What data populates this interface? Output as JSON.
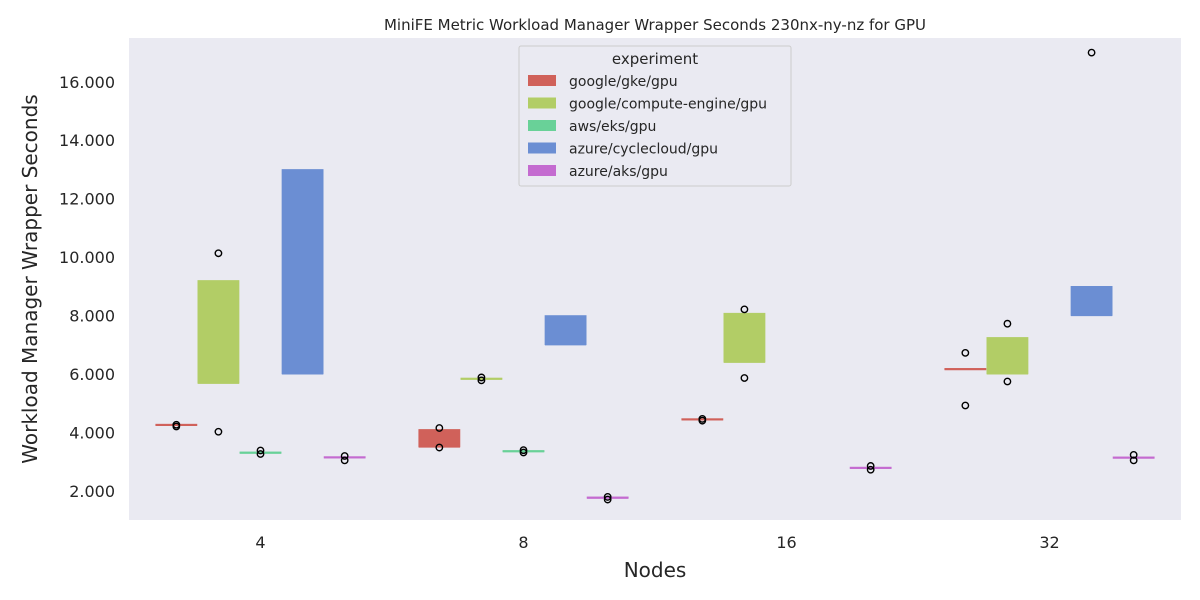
{
  "chart_data": {
    "type": "box",
    "title": "MiniFE Metric Workload Manager Wrapper Seconds 230nx-ny-nz for GPU",
    "xlabel": "Nodes",
    "ylabel": "Workload Manager Wrapper Seconds",
    "categories": [
      "4",
      "8",
      "16",
      "32"
    ],
    "ylim": [
      1000,
      17500
    ],
    "yticks": [
      2000,
      4000,
      6000,
      8000,
      10000,
      12000,
      14000,
      16000
    ],
    "ytick_labels": [
      "2.000",
      "4.000",
      "6.000",
      "8.000",
      "10.000",
      "12.000",
      "14.000",
      "16.000"
    ],
    "grid": false,
    "legend": {
      "title": "experiment",
      "placement": "upper-center"
    },
    "series": [
      {
        "name": "google/gke/gpu",
        "color": "#d0615a",
        "boxes": [
          {
            "category": "4",
            "q1": 4230,
            "median": 4240,
            "q3": 4250,
            "fliers": [
              4200,
              4260
            ]
          },
          {
            "category": "8",
            "q1": 3500,
            "median": 3500,
            "q3": 4100,
            "fliers": [
              3480,
              4150
            ]
          },
          {
            "category": "16",
            "q1": 4420,
            "median": 4430,
            "q3": 4440,
            "fliers": [
              4400,
              4460
            ]
          },
          {
            "category": "32",
            "q1": 6140,
            "median": 6150,
            "q3": 6160,
            "fliers": [
              4920,
              6720
            ]
          }
        ]
      },
      {
        "name": "google/compute-engine/gpu",
        "color": "#b2cd66",
        "boxes": [
          {
            "category": "4",
            "q1": 5680,
            "median": 5680,
            "q3": 9200,
            "fliers": [
              4020,
              10130
            ]
          },
          {
            "category": "8",
            "q1": 5810,
            "median": 5820,
            "q3": 5830,
            "fliers": [
              5780,
              5880
            ]
          },
          {
            "category": "16",
            "q1": 6400,
            "median": 6400,
            "q3": 8080,
            "fliers": [
              5860,
              8210
            ]
          },
          {
            "category": "32",
            "q1": 6000,
            "median": 6000,
            "q3": 7250,
            "fliers": [
              5740,
              7720
            ]
          }
        ]
      },
      {
        "name": "aws/eks/gpu",
        "color": "#69d198",
        "boxes": [
          {
            "category": "4",
            "q1": 3280,
            "median": 3290,
            "q3": 3300,
            "fliers": [
              3260,
              3380
            ]
          },
          {
            "category": "8",
            "q1": 3330,
            "median": 3340,
            "q3": 3350,
            "fliers": [
              3310,
              3390
            ]
          }
        ]
      },
      {
        "name": "azure/cyclecloud/gpu",
        "color": "#6b8ed3",
        "boxes": [
          {
            "category": "4",
            "q1": 6000,
            "median": 6000,
            "q3": 13000,
            "fliers": []
          },
          {
            "category": "8",
            "q1": 7000,
            "median": 7000,
            "q3": 8000,
            "fliers": []
          },
          {
            "category": "32",
            "q1": 8000,
            "median": 8000,
            "q3": 9000,
            "fliers": [
              17000
            ]
          }
        ]
      },
      {
        "name": "azure/aks/gpu",
        "color": "#c46bd0",
        "boxes": [
          {
            "category": "4",
            "q1": 3120,
            "median": 3130,
            "q3": 3140,
            "fliers": [
              3040,
              3190
            ]
          },
          {
            "category": "8",
            "q1": 1740,
            "median": 1750,
            "q3": 1760,
            "fliers": [
              1700,
              1790
            ]
          },
          {
            "category": "16",
            "q1": 2760,
            "median": 2770,
            "q3": 2780,
            "fliers": [
              2720,
              2850
            ]
          },
          {
            "category": "32",
            "q1": 3110,
            "median": 3120,
            "q3": 3130,
            "fliers": [
              3040,
              3230
            ]
          }
        ]
      }
    ]
  }
}
